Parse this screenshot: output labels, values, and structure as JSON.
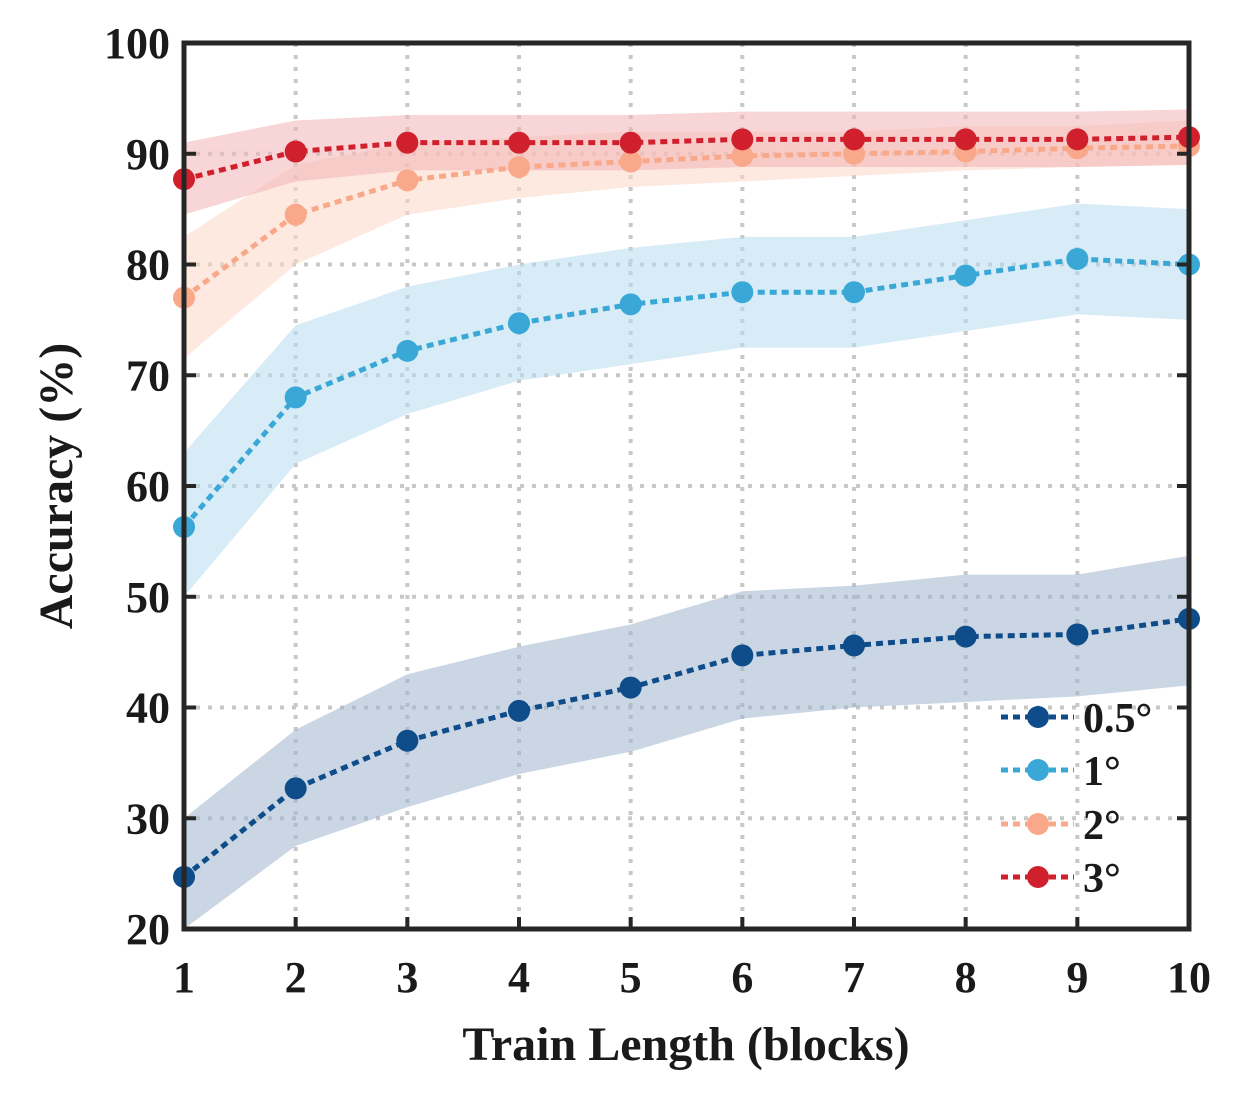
{
  "chart_data": {
    "type": "line",
    "title": "",
    "xlabel": "Train Length (blocks)",
    "ylabel": "Accuracy (%)",
    "x": [
      1,
      2,
      3,
      4,
      5,
      6,
      7,
      8,
      9,
      10
    ],
    "xticks": [
      "1",
      "2",
      "3",
      "4",
      "5",
      "6",
      "7",
      "8",
      "9",
      "10"
    ],
    "yticks": [
      "20",
      "30",
      "40",
      "50",
      "60",
      "70",
      "80",
      "90",
      "100"
    ],
    "xlim": [
      1,
      10
    ],
    "ylim": [
      20,
      100
    ],
    "grid": true,
    "legend_position": "bottom-right",
    "series": [
      {
        "name": "0.5°",
        "color": "#0f4c8a",
        "band_color": "#9fb4ce",
        "values": [
          24.7,
          32.7,
          37.0,
          39.7,
          41.8,
          44.7,
          45.6,
          46.4,
          46.6,
          48.0
        ],
        "upper": [
          30.0,
          38.0,
          43.0,
          45.5,
          47.5,
          50.5,
          51.0,
          52.0,
          52.0,
          53.7
        ],
        "lower": [
          20.0,
          27.5,
          31.0,
          34.0,
          36.0,
          39.0,
          40.0,
          40.5,
          41.0,
          42.0
        ]
      },
      {
        "name": "1°",
        "color": "#3aa8d6",
        "band_color": "#b6dcf0",
        "values": [
          56.3,
          68.0,
          72.2,
          74.7,
          76.4,
          77.5,
          77.5,
          79.0,
          80.5,
          80.0
        ],
        "upper": [
          63.0,
          74.5,
          78.0,
          80.0,
          81.5,
          82.5,
          82.5,
          84.0,
          85.5,
          85.0
        ],
        "lower": [
          50.0,
          62.0,
          66.5,
          69.5,
          71.0,
          72.5,
          72.5,
          74.0,
          75.5,
          75.0
        ]
      },
      {
        "name": "2°",
        "color": "#f9a98a",
        "band_color": "#fcd7c6",
        "values": [
          77.0,
          84.5,
          87.6,
          88.8,
          89.3,
          89.8,
          90.0,
          90.2,
          90.5,
          90.7
        ],
        "upper": [
          82.5,
          89.0,
          91.0,
          91.5,
          92.0,
          92.0,
          92.0,
          92.5,
          92.5,
          93.0
        ],
        "lower": [
          71.5,
          80.0,
          84.5,
          86.0,
          87.0,
          87.5,
          88.0,
          88.5,
          88.8,
          89.0
        ]
      },
      {
        "name": "3°",
        "color": "#d0202e",
        "band_color": "#f3b3b5",
        "values": [
          87.7,
          90.2,
          91.0,
          91.0,
          91.0,
          91.3,
          91.3,
          91.3,
          91.3,
          91.5
        ],
        "upper": [
          91.0,
          93.0,
          93.5,
          93.5,
          93.5,
          93.8,
          93.8,
          93.8,
          93.8,
          94.0
        ],
        "lower": [
          84.5,
          87.5,
          88.5,
          88.5,
          88.5,
          88.8,
          88.8,
          88.8,
          88.8,
          89.0
        ]
      }
    ]
  }
}
